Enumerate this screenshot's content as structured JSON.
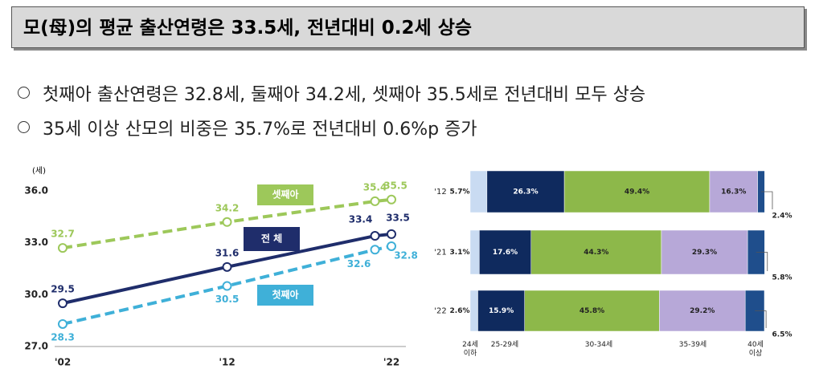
{
  "header": {
    "title": "모(母)의 평균 출산연령은 33.5세, 전년대비 0.2세 상승"
  },
  "bullets": [
    "첫째아 출산연령은 32.8세, 둘째아 34.2세, 셋째아 35.5세로 전년대비 모두 상승",
    "35세 이상 산모의 비중은 35.7%로 전년대비 0.6%p 증가"
  ],
  "chart_data": [
    {
      "type": "line",
      "y_label": "(세)",
      "x": [
        2,
        12,
        21,
        22
      ],
      "xticks": [
        {
          "value": 2,
          "label": "'02"
        },
        {
          "value": 12,
          "label": "'12"
        },
        {
          "value": 22,
          "label": "'22"
        }
      ],
      "xlim": [
        2,
        22
      ],
      "ylim": [
        27,
        36
      ],
      "yticks": [
        {
          "value": 27,
          "label": "27.0"
        },
        {
          "value": 30,
          "label": "30.0"
        },
        {
          "value": 33,
          "label": "33.0"
        },
        {
          "value": 36,
          "label": "36.0"
        }
      ],
      "series": [
        {
          "name": "셋째아",
          "color": "#9dc85a",
          "dashed": true,
          "values": [
            32.7,
            34.2,
            35.4,
            35.5
          ]
        },
        {
          "name": "전 체",
          "color": "#1f2d6b",
          "dashed": false,
          "values": [
            29.5,
            31.6,
            33.4,
            33.5
          ]
        },
        {
          "name": "첫째아",
          "color": "#3fb0d8",
          "dashed": true,
          "values": [
            28.3,
            30.5,
            32.6,
            32.8
          ]
        }
      ]
    },
    {
      "type": "stacked-barh",
      "categories": [
        "'12",
        "'21",
        "'22"
      ],
      "series": [
        {
          "name": "24세\n이하",
          "color": "#c9dbf2",
          "values": [
            5.7,
            3.1,
            2.6
          ],
          "value_labels": [
            "5.7%",
            "3.1%",
            "2.6%"
          ]
        },
        {
          "name": "25-29세",
          "color": "#0f2a5e",
          "values": [
            26.3,
            17.6,
            15.9
          ],
          "value_labels": [
            "26.3%",
            "17.6%",
            "15.9%"
          ]
        },
        {
          "name": "30-34세",
          "color": "#8db84a",
          "values": [
            49.4,
            44.3,
            45.8
          ],
          "value_labels": [
            "49.4%",
            "44.3%",
            "45.8%"
          ]
        },
        {
          "name": "35-39세",
          "color": "#b7a8d8",
          "values": [
            16.3,
            29.3,
            29.2
          ],
          "value_labels": [
            "16.3%",
            "29.3%",
            "29.2%"
          ]
        },
        {
          "name": "40세\n이상",
          "color": "#1f4e8c",
          "values": [
            2.4,
            5.8,
            6.5
          ],
          "value_labels": [
            "2.4%",
            "5.8%",
            "6.5%"
          ]
        }
      ]
    }
  ]
}
